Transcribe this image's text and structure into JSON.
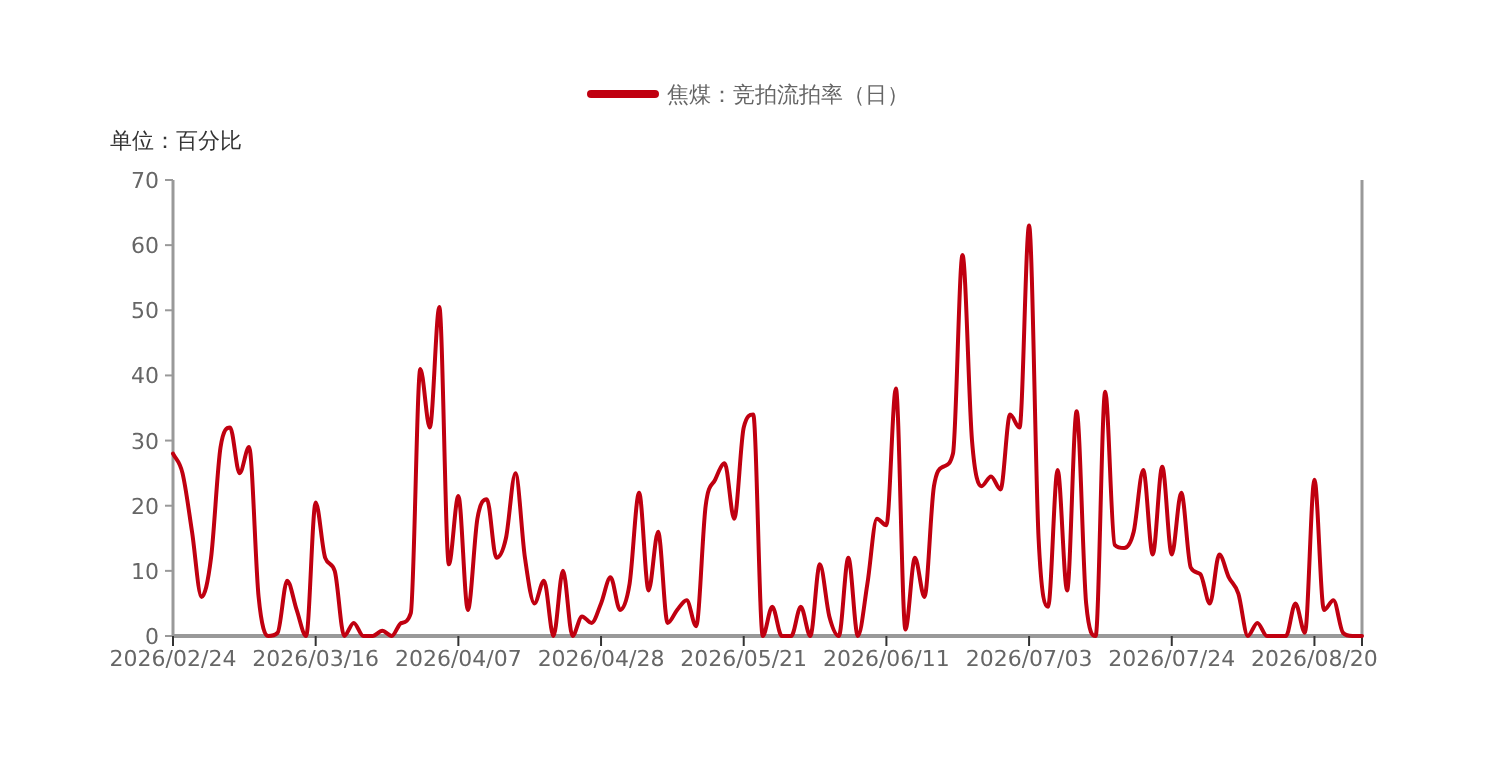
{
  "chart_data": {
    "type": "line",
    "ylabel": "单位：百分比",
    "categories": [
      "2026/02/24",
      null,
      null,
      null,
      null,
      null,
      null,
      null,
      null,
      null,
      null,
      null,
      null,
      null,
      null,
      "2026/03/16",
      null,
      null,
      null,
      null,
      null,
      null,
      null,
      null,
      null,
      null,
      null,
      null,
      null,
      null,
      "2026/04/07",
      null,
      null,
      null,
      null,
      null,
      null,
      null,
      null,
      null,
      null,
      null,
      null,
      null,
      null,
      "2026/04/28",
      null,
      null,
      null,
      null,
      null,
      null,
      null,
      null,
      null,
      null,
      null,
      null,
      null,
      null,
      "2026/05/21",
      null,
      null,
      null,
      null,
      null,
      null,
      null,
      null,
      null,
      null,
      null,
      null,
      null,
      null,
      "2026/06/11",
      null,
      null,
      null,
      null,
      null,
      null,
      null,
      null,
      null,
      null,
      null,
      null,
      null,
      null,
      "2026/07/03",
      null,
      null,
      null,
      null,
      null,
      null,
      null,
      null,
      null,
      null,
      null,
      null,
      null,
      null,
      "2026/07/24",
      null,
      null,
      null,
      null,
      null,
      null,
      null,
      null,
      null,
      null,
      null,
      null,
      null,
      null,
      "2026/08/20",
      null,
      null,
      null,
      null,
      null
    ],
    "series": [
      {
        "name": "焦煤：竞拍流拍率（日）",
        "color": "#c00010",
        "values": [
          28,
          25,
          16,
          6,
          12,
          29,
          32,
          25,
          29,
          6,
          0,
          0.5,
          8.5,
          4,
          0,
          20.5,
          12,
          10,
          0,
          2,
          0,
          0,
          0.8,
          0,
          2,
          3.5,
          41,
          32,
          50.5,
          11,
          21.5,
          4,
          18,
          21,
          12,
          15,
          25,
          12,
          5,
          8.5,
          0,
          10,
          0,
          3,
          2,
          5,
          9,
          4,
          8,
          22,
          7,
          16,
          2,
          4,
          5.5,
          1.5,
          20,
          24,
          26.5,
          18,
          32,
          34,
          0,
          4.5,
          0,
          0,
          4.5,
          0,
          11,
          3,
          0,
          12,
          0,
          8,
          18,
          17,
          38,
          1,
          12,
          6,
          23,
          26,
          28,
          58.5,
          30,
          23,
          24.5,
          22.5,
          34,
          32,
          63,
          15,
          4.5,
          25.5,
          7,
          34.5,
          5,
          0,
          37.5,
          14,
          13.5,
          16,
          25.5,
          12.5,
          26,
          12.5,
          22,
          10.5,
          9.5,
          5,
          12.5,
          9,
          6.5,
          0,
          2,
          0,
          0,
          0,
          5,
          0.5,
          24,
          4,
          5.5,
          0.5,
          0,
          0
        ]
      }
    ],
    "ylim": [
      0,
      70
    ],
    "yticks": [
      0,
      10,
      20,
      30,
      40,
      50,
      60,
      70
    ],
    "grid": false,
    "legend": "top"
  }
}
